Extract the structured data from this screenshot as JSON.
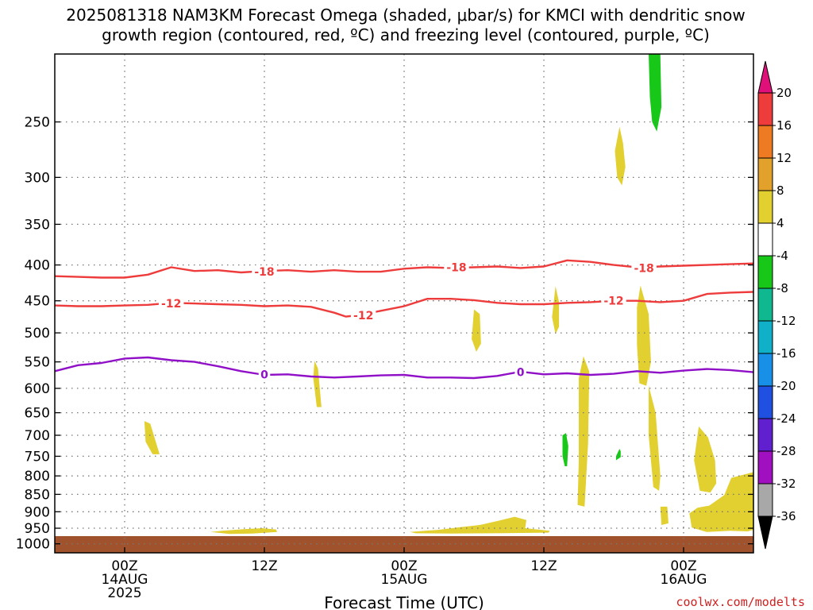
{
  "chart_data": {
    "type": "heatmap",
    "title_line1": "2025081318 NAM3KM Forecast Omega (shaded, μbar/s) for KMCI with dendritic snow",
    "title_line2": "growth region (contoured, red, ºC) and freezing level (contoured, purple, ºC)",
    "xlabel": "Forecast Time (UTC)",
    "credit": "coolwx.com/modelts",
    "y_axis": {
      "type": "pressure_log",
      "range_hPa": [
        1030,
        200
      ],
      "ticks": [
        250,
        300,
        350,
        400,
        450,
        500,
        550,
        600,
        650,
        700,
        750,
        800,
        850,
        900,
        950,
        1000
      ]
    },
    "x_axis": {
      "range_hours": [
        -6,
        54
      ],
      "ticks": [
        {
          "hour": 0,
          "lines": [
            "00Z",
            "14AUG",
            "2025"
          ]
        },
        {
          "hour": 12,
          "lines": [
            "12Z"
          ]
        },
        {
          "hour": 24,
          "lines": [
            "00Z",
            "15AUG"
          ]
        },
        {
          "hour": 36,
          "lines": [
            "12Z"
          ]
        },
        {
          "hour": 48,
          "lines": [
            "00Z",
            "16AUG"
          ]
        }
      ]
    },
    "grid": true,
    "colorbar": {
      "labels": [
        "20",
        "16",
        "12",
        "8",
        "4",
        "-4",
        "-8",
        "-12",
        "-16",
        "-20",
        "-24",
        "-28",
        "-32",
        "-36"
      ],
      "bins": [
        {
          "from": 16,
          "to": 20,
          "color": "#ee3c3c"
        },
        {
          "from": 12,
          "to": 16,
          "color": "#ee7a22"
        },
        {
          "from": 8,
          "to": 12,
          "color": "#e2a12a"
        },
        {
          "from": 4,
          "to": 8,
          "color": "#e2d030"
        },
        {
          "from": -4,
          "to": 4,
          "color": "#ffffff"
        },
        {
          "from": -8,
          "to": -4,
          "color": "#18c818"
        },
        {
          "from": -12,
          "to": -8,
          "color": "#10b890"
        },
        {
          "from": -16,
          "to": -12,
          "color": "#10b0c8"
        },
        {
          "from": -20,
          "to": -16,
          "color": "#1890e8"
        },
        {
          "from": -24,
          "to": -20,
          "color": "#2050e0"
        },
        {
          "from": -28,
          "to": -24,
          "color": "#6020d0"
        },
        {
          "from": -32,
          "to": -28,
          "color": "#a010c0"
        },
        {
          "from": -36,
          "to": -32,
          "color": "#a8a8a8"
        }
      ],
      "over_color": "#e0107a",
      "under_color": "#000000"
    },
    "contours": [
      {
        "level": "-18",
        "color": "#ee3c3c",
        "points": [
          [
            -6,
            415
          ],
          [
            -4,
            416
          ],
          [
            -2,
            417
          ],
          [
            0,
            417
          ],
          [
            2,
            413
          ],
          [
            4,
            403
          ],
          [
            6,
            408
          ],
          [
            8,
            407
          ],
          [
            10,
            410
          ],
          [
            12,
            408
          ],
          [
            14,
            407
          ],
          [
            16,
            409
          ],
          [
            18,
            407
          ],
          [
            20,
            409
          ],
          [
            22,
            409
          ],
          [
            24,
            405
          ],
          [
            26,
            403
          ],
          [
            28,
            404
          ],
          [
            30,
            403
          ],
          [
            32,
            402
          ],
          [
            34,
            404
          ],
          [
            36,
            402
          ],
          [
            38,
            394
          ],
          [
            40,
            396
          ],
          [
            42,
            400
          ],
          [
            44,
            403
          ],
          [
            46,
            402
          ],
          [
            48,
            401
          ],
          [
            50,
            400
          ],
          [
            52,
            399
          ],
          [
            54,
            398
          ]
        ],
        "labels": [
          {
            "hour": 12,
            "hpa": 409
          },
          {
            "hour": 28.5,
            "hpa": 403
          },
          {
            "hour": 44.6,
            "hpa": 404
          }
        ]
      },
      {
        "level": "-12",
        "color": "#ee3c3c",
        "points": [
          [
            -6,
            457
          ],
          [
            -4,
            458
          ],
          [
            -2,
            458
          ],
          [
            0,
            457
          ],
          [
            2,
            456
          ],
          [
            4,
            453
          ],
          [
            6,
            454
          ],
          [
            8,
            455
          ],
          [
            10,
            456
          ],
          [
            12,
            458
          ],
          [
            14,
            457
          ],
          [
            16,
            459
          ],
          [
            18,
            468
          ],
          [
            19,
            474
          ],
          [
            20,
            472
          ],
          [
            22,
            465
          ],
          [
            24,
            458
          ],
          [
            26,
            447
          ],
          [
            28,
            447
          ],
          [
            30,
            449
          ],
          [
            32,
            453
          ],
          [
            34,
            455
          ],
          [
            36,
            455
          ],
          [
            38,
            453
          ],
          [
            40,
            452
          ],
          [
            42,
            450
          ],
          [
            44,
            450
          ],
          [
            46,
            452
          ],
          [
            48,
            450
          ],
          [
            50,
            440
          ],
          [
            52,
            438
          ],
          [
            54,
            437
          ]
        ],
        "labels": [
          {
            "hour": 4,
            "hpa": 454
          },
          {
            "hour": 20.5,
            "hpa": 472
          },
          {
            "hour": 42,
            "hpa": 450
          }
        ]
      },
      {
        "level": "0",
        "color": "#9010c8",
        "points": [
          [
            -6,
            567
          ],
          [
            -4,
            556
          ],
          [
            -2,
            552
          ],
          [
            0,
            544
          ],
          [
            2,
            542
          ],
          [
            4,
            547
          ],
          [
            6,
            550
          ],
          [
            8,
            558
          ],
          [
            10,
            567
          ],
          [
            12,
            574
          ],
          [
            14,
            573
          ],
          [
            16,
            577
          ],
          [
            18,
            579
          ],
          [
            20,
            577
          ],
          [
            22,
            575
          ],
          [
            24,
            574
          ],
          [
            26,
            579
          ],
          [
            28,
            579
          ],
          [
            30,
            580
          ],
          [
            32,
            576
          ],
          [
            34,
            568
          ],
          [
            36,
            573
          ],
          [
            38,
            571
          ],
          [
            40,
            574
          ],
          [
            42,
            572
          ],
          [
            44,
            567
          ],
          [
            46,
            570
          ],
          [
            48,
            566
          ],
          [
            50,
            563
          ],
          [
            52,
            565
          ],
          [
            54,
            569
          ]
        ],
        "labels": [
          {
            "hour": 12,
            "hpa": 573
          },
          {
            "hour": 34,
            "hpa": 569
          }
        ]
      }
    ],
    "omega_regions": [
      {
        "value": 6,
        "points": [
          [
            1.7,
            668
          ],
          [
            2.2,
            674
          ],
          [
            3.0,
            745
          ],
          [
            2.4,
            745
          ],
          [
            1.8,
            715
          ]
        ]
      },
      {
        "value": 6,
        "points": [
          [
            16.3,
            548
          ],
          [
            16.6,
            562
          ],
          [
            16.9,
            638
          ],
          [
            16.5,
            638
          ],
          [
            16.2,
            580
          ]
        ]
      },
      {
        "value": 6,
        "points": [
          [
            7.4,
            962
          ],
          [
            8.4,
            958
          ],
          [
            10.2,
            953
          ],
          [
            11.8,
            950
          ],
          [
            13.0,
            954
          ],
          [
            13.1,
            962
          ],
          [
            11.0,
            967
          ],
          [
            9.0,
            968
          ]
        ]
      },
      {
        "value": 6,
        "points": [
          [
            30.0,
            463
          ],
          [
            30.5,
            470
          ],
          [
            30.6,
            518
          ],
          [
            30.2,
            532
          ],
          [
            29.8,
            510
          ]
        ]
      },
      {
        "value": 6,
        "points": [
          [
            37.0,
            429
          ],
          [
            37.3,
            452
          ],
          [
            37.3,
            490
          ],
          [
            37.0,
            502
          ],
          [
            36.7,
            475
          ]
        ]
      },
      {
        "value": 6,
        "points": [
          [
            39.4,
            540
          ],
          [
            39.9,
            568
          ],
          [
            39.8,
            720
          ],
          [
            39.5,
            885
          ],
          [
            38.9,
            880
          ],
          [
            39.0,
            760
          ],
          [
            39.0,
            580
          ]
        ]
      },
      {
        "value": 6,
        "points": [
          [
            44.3,
            428
          ],
          [
            45.0,
            470
          ],
          [
            45.2,
            550
          ],
          [
            44.8,
            595
          ],
          [
            44.2,
            590
          ],
          [
            44.0,
            520
          ],
          [
            44.0,
            460
          ]
        ]
      },
      {
        "value": 6,
        "points": [
          [
            45.0,
            595
          ],
          [
            45.6,
            650
          ],
          [
            46.0,
            800
          ],
          [
            45.9,
            840
          ],
          [
            45.4,
            830
          ],
          [
            45.0,
            700
          ]
        ]
      },
      {
        "value": 6,
        "points": [
          [
            49.3,
            680
          ],
          [
            50.1,
            705
          ],
          [
            50.7,
            760
          ],
          [
            50.8,
            820
          ],
          [
            50.3,
            845
          ],
          [
            49.4,
            840
          ],
          [
            48.9,
            760
          ]
        ]
      },
      {
        "value": 6,
        "points": [
          [
            54.0,
            790
          ],
          [
            52.1,
            805
          ],
          [
            51.5,
            852
          ],
          [
            50.2,
            882
          ],
          [
            49.2,
            888
          ],
          [
            48.5,
            905
          ],
          [
            48.7,
            948
          ],
          [
            50.0,
            962
          ],
          [
            52.0,
            958
          ],
          [
            53.5,
            960
          ],
          [
            54.0,
            955
          ]
        ]
      },
      {
        "value": 6,
        "points": [
          [
            46.0,
            885
          ],
          [
            46.6,
            885
          ],
          [
            46.7,
            935
          ],
          [
            46.1,
            940
          ]
        ]
      },
      {
        "value": 6,
        "points": [
          [
            24.5,
            962
          ],
          [
            27.0,
            955
          ],
          [
            28.5,
            948
          ],
          [
            30.5,
            940
          ],
          [
            32.0,
            928
          ],
          [
            33.5,
            915
          ],
          [
            34.5,
            925
          ],
          [
            34.4,
            950
          ],
          [
            36.5,
            958
          ],
          [
            36.4,
            964
          ],
          [
            31.5,
            966
          ],
          [
            28.0,
            967
          ],
          [
            25.0,
            966
          ]
        ]
      },
      {
        "value": 6,
        "points": [
          [
            42.5,
            254
          ],
          [
            42.8,
            268
          ],
          [
            43.0,
            290
          ],
          [
            42.7,
            308
          ],
          [
            42.3,
            300
          ],
          [
            42.1,
            275
          ]
        ]
      },
      {
        "value": -6,
        "points": [
          [
            42.2,
            750
          ],
          [
            42.5,
            732
          ],
          [
            42.6,
            738
          ],
          [
            42.6,
            752
          ],
          [
            42.2,
            760
          ]
        ]
      },
      {
        "value": -6,
        "points": [
          [
            37.6,
            700
          ],
          [
            37.9,
            695
          ],
          [
            38.1,
            725
          ],
          [
            38.0,
            775
          ],
          [
            37.8,
            775
          ],
          [
            37.6,
            750
          ]
        ]
      },
      {
        "value": -6,
        "points": [
          [
            45.0,
            200
          ],
          [
            46.0,
            200
          ],
          [
            46.1,
            238
          ],
          [
            45.7,
            258
          ],
          [
            45.3,
            250
          ],
          [
            45.1,
            230
          ]
        ]
      }
    ],
    "ground": {
      "color": "#a0522d",
      "from_hPa": 975
    }
  }
}
